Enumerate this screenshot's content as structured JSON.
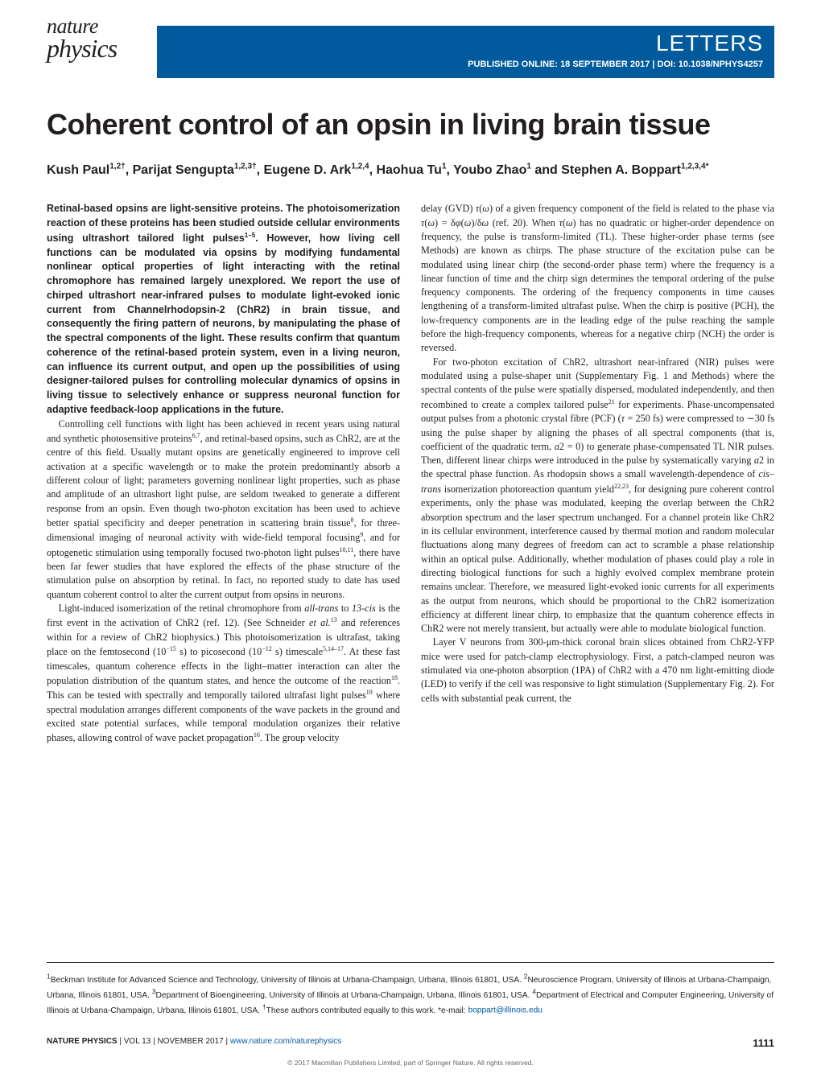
{
  "journal": {
    "logo_top": "nature",
    "logo_bottom": "physics"
  },
  "header": {
    "section": "LETTERS",
    "pub_prefix": "PUBLISHED ONLINE: 18 SEPTEMBER 2017 | ",
    "doi": "DOI: 10.1038/NPHYS4257",
    "bar_color": "#005a9c"
  },
  "title": "Coherent control of an opsin in living brain tissue",
  "authors_html": "Kush Paul<sup>1,2†</sup>, Parijat Sengupta<sup>1,2,3†</sup>, Eugene D. Ark<sup>1,2,4</sup>, Haohua Tu<sup>1</sup>, Youbo Zhao<sup>1</sup> and Stephen A. Boppart<sup>1,2,3,4*</sup>",
  "abstract": "Retinal-based opsins are light-sensitive proteins. The photoisomerization reaction of these proteins has been studied outside cellular environments using ultrashort tailored light pulses<sup>1–5</sup>. However, how living cell functions can be modulated via opsins by modifying fundamental nonlinear optical properties of light interacting with the retinal chromophore has remained largely unexplored. We report the use of chirped ultrashort near-infrared pulses to modulate light-evoked ionic current from Channelrhodopsin-2 (ChR2) in brain tissue, and consequently the firing pattern of neurons, by manipulating the phase of the spectral components of the light. These results confirm that quantum coherence of the retinal-based protein system, even in a living neuron, can influence its current output, and open up the possibilities of using designer-tailored pulses for controlling molecular dynamics of opsins in living tissue to selectively enhance or suppress neuronal function for adaptive feedback-loop applications in the future.",
  "body_left": [
    "Controlling cell functions with light has been achieved in recent years using natural and synthetic photosensitive proteins<sup>6,7</sup>, and retinal-based opsins, such as ChR2, are at the centre of this field. Usually mutant opsins are genetically engineered to improve cell activation at a specific wavelength or to make the protein predominantly absorb a different colour of light; parameters governing nonlinear light properties, such as phase and amplitude of an ultrashort light pulse, are seldom tweaked to generate a different response from an opsin. Even though two-photon excitation has been used to achieve better spatial specificity and deeper penetration in scattering brain tissue<sup>8</sup>, for three-dimensional imaging of neuronal activity with wide-field temporal focusing<sup>9</sup>, and for optogenetic stimulation using temporally focused two-photon light pulses<sup>10,11</sup>, there have been far fewer studies that have explored the effects of the phase structure of the stimulation pulse on absorption by retinal. In fact, no reported study to date has used quantum coherent control to alter the current output from opsins in neurons.",
    "Light-induced isomerization of the retinal chromophore from <em>all-trans</em> to <em>13-cis</em> is the first event in the activation of ChR2 (ref. 12). (See Schneider <em>et al.</em><sup>13</sup> and references within for a review of ChR2 biophysics.) This photoisomerization is ultrafast, taking place on the femtosecond (10<sup>−15</sup> s) to picosecond (10<sup>−12</sup> s) timescale<sup>5,14–17</sup>. At these fast timescales, quantum coherence effects in the light–matter interaction can alter the population distribution of the quantum states, and hence the outcome of the reaction<sup>18</sup>. This can be tested with spectrally and temporally tailored ultrafast light pulses<sup>19</sup> where spectral modulation arranges different components of the wave packets in the ground and excited state potential surfaces, while temporal modulation organizes their relative phases, allowing control of wave packet propagation<sup>16</sup>. The group velocity"
  ],
  "body_right": [
    "delay (GVD) <em>τ</em>(<em>ω</em>) of a given frequency component of the field is related to the phase via <em>τ</em>(<em>ω</em>) = δ<em>φ</em>(<em>ω</em>)/δ<em>ω</em> (ref. 20). When <em>τ</em>(<em>ω</em>) has no quadratic or higher-order dependence on frequency, the pulse is transform-limited (TL). These higher-order phase terms (see Methods) are known as chirps. The phase structure of the excitation pulse can be modulated using linear chirp (the second-order phase term) where the frequency is a linear function of time and the chirp sign determines the temporal ordering of the pulse frequency components. The ordering of the frequency components in time causes lengthening of a transform-limited ultrafast pulse. When the chirp is positive (PCH), the low-frequency components are in the leading edge of the pulse reaching the sample before the high-frequency components, whereas for a negative chirp (NCH) the order is reversed.",
    "For two-photon excitation of ChR2, ultrashort near-infrared (NIR) pulses were modulated using a pulse-shaper unit (Supplementary Fig. 1 and Methods) where the spectral contents of the pulse were spatially dispersed, modulated independently, and then recombined to create a complex tailored pulse<sup>21</sup> for experiments. Phase-uncompensated output pulses from a photonic crystal fibre (PCF) (<em>τ</em> = 250 fs) were compressed to ∼30 fs using the pulse shaper by aligning the phases of all spectral components (that is, coefficient of the quadratic term, <em>a</em>2 = 0) to generate phase-compensated TL NIR pulses. Then, different linear chirps were introduced in the pulse by systematically varying <em>a</em>2 in the spectral phase function. As rhodopsin shows a small wavelength-dependence of <em>cis–trans</em> isomerization photoreaction quantum yield<sup>22,23</sup>, for designing pure coherent control experiments, only the phase was modulated, keeping the overlap between the ChR2 absorption spectrum and the laser spectrum unchanged. For a channel protein like ChR2 in its cellular environment, interference caused by thermal motion and random molecular fluctuations along many degrees of freedom can act to scramble a phase relationship within an optical pulse. Additionally, whether modulation of phases could play a role in directing biological functions for such a highly evolved complex membrane protein remains unclear. Therefore, we measured light-evoked ionic currents for all experiments as the output from neurons, which should be proportional to the ChR2 isomerization efficiency at different linear chirp, to emphasize that the quantum coherence effects in ChR2 were not merely transient, but actually were able to modulate biological function.",
    "Layer V neurons from 300-μm-thick coronal brain slices obtained from ChR2-YFP mice were used for patch-clamp electrophysiology. First, a patch-clamped neuron was stimulated via one-photon absorption (1PA) of ChR2 with a 470 nm light-emitting diode (LED) to verify if the cell was responsive to light stimulation (Supplementary Fig. 2). For cells with substantial peak current, the"
  ],
  "affiliations": "<sup>1</sup>Beckman Institute for Advanced Science and Technology, University of Illinois at Urbana-Champaign, Urbana, Illinois 61801, USA. <sup>2</sup>Neuroscience Program, University of Illinois at Urbana-Champaign, Urbana, Illinois 61801, USA. <sup>3</sup>Department of Bioengineering, University of Illinois at Urbana-Champaign, Urbana, Illinois 61801, USA. <sup>4</sup>Department of Electrical and Computer Engineering, University of Illinois at Urbana-Champaign, Urbana, Illinois 61801, USA. <sup>†</sup>These authors contributed equally to this work. *e-mail: ",
  "email": "boppart@illinois.edu",
  "footer": {
    "journal": "NATURE PHYSICS",
    "vol": " | VOL 13 | NOVEMBER 2017 | ",
    "url": "www.nature.com/naturephysics",
    "page": "1111"
  },
  "copyright": "© 2017 Macmillan Publishers Limited, part of Springer Nature. All rights reserved."
}
